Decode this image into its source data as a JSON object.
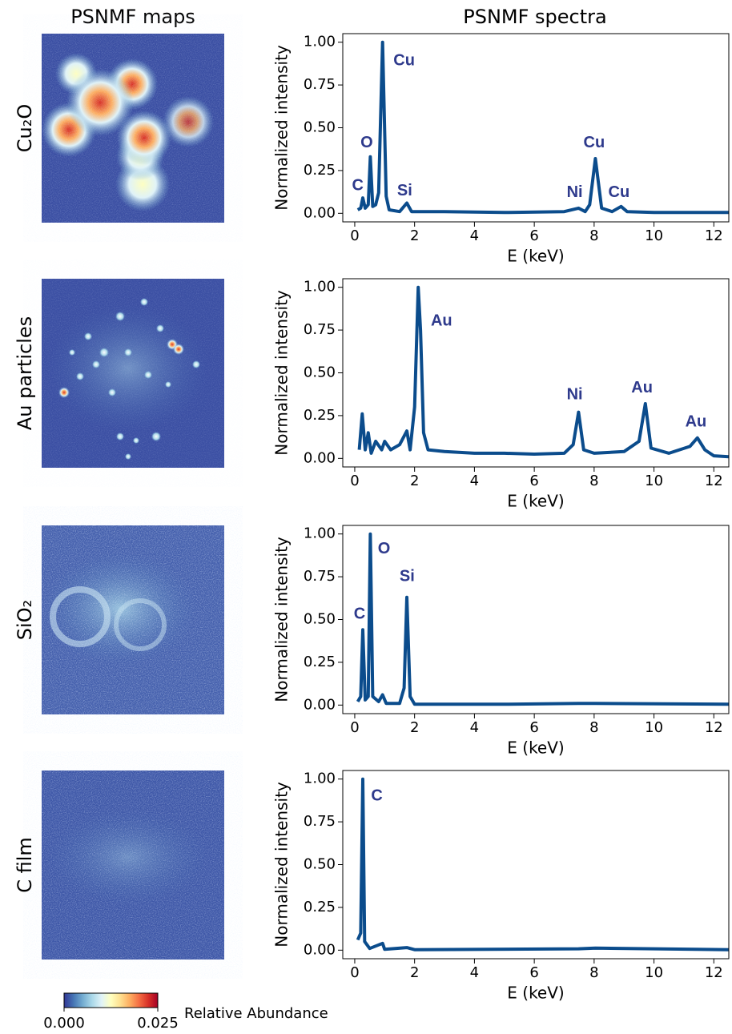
{
  "figure": {
    "maps_title": "PSNMF maps",
    "spectra_title": "PSNMF spectra",
    "colorbar": {
      "label": "Relative Abundance",
      "lim": [
        0,
        0.025
      ],
      "ticks": [
        {
          "value": 0,
          "label": "0.000"
        },
        {
          "value": 0.025,
          "label": "0.025"
        }
      ],
      "colors": [
        "#313695",
        "#4575b4",
        "#74add1",
        "#abd9e9",
        "#e0f3f8",
        "#ffffbf",
        "#fee090",
        "#fdae61",
        "#f46d43",
        "#d73027",
        "#a50026"
      ]
    }
  },
  "chart_data": [
    {
      "type": "line",
      "map_label": "Cu₂O",
      "xlabel": "E (keV)",
      "ylabel": "Normalized intensity",
      "color": "#0b4c8c",
      "x": [
        0.1,
        0.2,
        0.27,
        0.35,
        0.45,
        0.52,
        0.6,
        0.7,
        0.8,
        0.93,
        1.05,
        1.15,
        1.5,
        1.74,
        1.9,
        3,
        5,
        7,
        7.48,
        7.7,
        7.85,
        8.04,
        8.25,
        8.6,
        8.9,
        9.1,
        10,
        12.5
      ],
      "values": [
        0.02,
        0.03,
        0.09,
        0.03,
        0.05,
        0.33,
        0.04,
        0.05,
        0.12,
        1.0,
        0.1,
        0.02,
        0.01,
        0.06,
        0.01,
        0.01,
        0.005,
        0.01,
        0.03,
        0.01,
        0.05,
        0.32,
        0.03,
        0.01,
        0.04,
        0.01,
        0.005,
        0.005
      ],
      "annotations": [
        {
          "text": "C",
          "x": 0.1,
          "y": 0.16
        },
        {
          "text": "O",
          "x": 0.4,
          "y": 0.41
        },
        {
          "text": "Cu",
          "x": 1.65,
          "y": 0.89
        },
        {
          "text": "Si",
          "x": 1.67,
          "y": 0.13
        },
        {
          "text": "Ni",
          "x": 7.35,
          "y": 0.12
        },
        {
          "text": "Cu",
          "x": 8.0,
          "y": 0.41
        },
        {
          "text": "Cu",
          "x": 8.83,
          "y": 0.12
        }
      ],
      "xlim": [
        -0.4,
        12.5
      ],
      "ylim": [
        -0.05,
        1.05
      ],
      "xticks": [
        0,
        2,
        4,
        6,
        8,
        10,
        12
      ],
      "yticks": [
        {
          "value": 0,
          "label": "0.00"
        },
        {
          "value": 0.25,
          "label": "0.25"
        },
        {
          "value": 0.5,
          "label": "0.50"
        },
        {
          "value": 0.75,
          "label": "0.75"
        },
        {
          "value": 1,
          "label": "1.00"
        }
      ]
    },
    {
      "type": "line",
      "map_label": "Au particles",
      "xlabel": "E (keV)",
      "ylabel": "Normalized intensity",
      "color": "#0b4c8c",
      "x": [
        0.15,
        0.25,
        0.35,
        0.45,
        0.55,
        0.7,
        0.9,
        1.0,
        1.2,
        1.5,
        1.74,
        1.85,
        2.0,
        2.12,
        2.2,
        2.3,
        2.45,
        3,
        4,
        5,
        6,
        7,
        7.3,
        7.48,
        7.65,
        8,
        9,
        9.5,
        9.71,
        9.9,
        10.5,
        11.2,
        11.45,
        11.7,
        12,
        12.5
      ],
      "values": [
        0.05,
        0.26,
        0.05,
        0.15,
        0.03,
        0.1,
        0.05,
        0.1,
        0.05,
        0.08,
        0.16,
        0.05,
        0.3,
        1.0,
        0.75,
        0.15,
        0.05,
        0.04,
        0.03,
        0.03,
        0.025,
        0.03,
        0.08,
        0.27,
        0.05,
        0.03,
        0.04,
        0.1,
        0.32,
        0.06,
        0.03,
        0.07,
        0.12,
        0.05,
        0.015,
        0.01
      ],
      "annotations": [
        {
          "text": "Au",
          "x": 2.9,
          "y": 0.8
        },
        {
          "text": "Ni",
          "x": 7.35,
          "y": 0.37
        },
        {
          "text": "Au",
          "x": 9.6,
          "y": 0.41
        },
        {
          "text": "Au",
          "x": 11.4,
          "y": 0.21
        }
      ],
      "xlim": [
        -0.4,
        12.5
      ],
      "ylim": [
        -0.05,
        1.05
      ],
      "xticks": [
        0,
        2,
        4,
        6,
        8,
        10,
        12
      ],
      "yticks": [
        {
          "value": 0,
          "label": "0.00"
        },
        {
          "value": 0.25,
          "label": "0.25"
        },
        {
          "value": 0.5,
          "label": "0.50"
        },
        {
          "value": 0.75,
          "label": "0.75"
        },
        {
          "value": 1,
          "label": "1.00"
        }
      ]
    },
    {
      "type": "line",
      "map_label": "SiO₂",
      "xlabel": "E (keV)",
      "ylabel": "Normalized intensity",
      "color": "#0b4c8c",
      "x": [
        0.1,
        0.2,
        0.27,
        0.35,
        0.45,
        0.52,
        0.6,
        0.8,
        0.93,
        1.05,
        1.5,
        1.65,
        1.74,
        1.85,
        2.0,
        5,
        7.48,
        8.04,
        12.5
      ],
      "values": [
        0.02,
        0.05,
        0.44,
        0.03,
        0.05,
        1.0,
        0.05,
        0.02,
        0.06,
        0.01,
        0.01,
        0.1,
        0.63,
        0.05,
        0.005,
        0.005,
        0.01,
        0.01,
        0.005
      ],
      "annotations": [
        {
          "text": "O",
          "x": 0.98,
          "y": 0.91
        },
        {
          "text": "Si",
          "x": 1.75,
          "y": 0.75
        },
        {
          "text": "C",
          "x": 0.16,
          "y": 0.53
        }
      ],
      "xlim": [
        -0.4,
        12.5
      ],
      "ylim": [
        -0.05,
        1.05
      ],
      "xticks": [
        0,
        2,
        4,
        6,
        8,
        10,
        12
      ],
      "yticks": [
        {
          "value": 0,
          "label": "0.00"
        },
        {
          "value": 0.25,
          "label": "0.25"
        },
        {
          "value": 0.5,
          "label": "0.50"
        },
        {
          "value": 0.75,
          "label": "0.75"
        },
        {
          "value": 1,
          "label": "1.00"
        }
      ]
    },
    {
      "type": "line",
      "map_label": "C film",
      "xlabel": "E (keV)",
      "ylabel": "Normalized intensity",
      "color": "#0b4c8c",
      "x": [
        0.1,
        0.2,
        0.27,
        0.33,
        0.5,
        0.93,
        1.0,
        1.74,
        2,
        7.48,
        8.04,
        12.5
      ],
      "values": [
        0.06,
        0.1,
        1.0,
        0.05,
        0.01,
        0.04,
        0.005,
        0.015,
        0.003,
        0.008,
        0.012,
        0.003
      ],
      "annotations": [
        {
          "text": "C",
          "x": 0.74,
          "y": 0.9
        }
      ],
      "xlim": [
        -0.4,
        12.5
      ],
      "ylim": [
        -0.05,
        1.05
      ],
      "xticks": [
        0,
        2,
        4,
        6,
        8,
        10,
        12
      ],
      "yticks": [
        {
          "value": 0,
          "label": "0.00"
        },
        {
          "value": 0.25,
          "label": "0.25"
        },
        {
          "value": 0.5,
          "label": "0.50"
        },
        {
          "value": 0.75,
          "label": "0.75"
        },
        {
          "value": 1,
          "label": "1.00"
        }
      ]
    }
  ]
}
